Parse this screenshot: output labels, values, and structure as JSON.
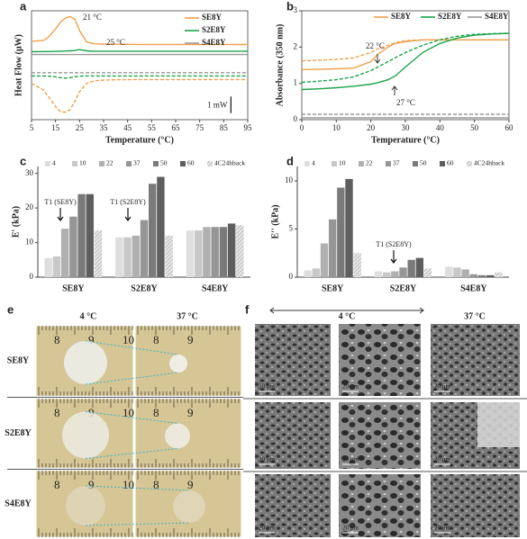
{
  "chart_data": [
    {
      "type": "line",
      "label": "a",
      "xlabel": "Temperature (°C)",
      "ylabel": "Heat Flow (μW)",
      "x": [
        5,
        10,
        12,
        15,
        17,
        19,
        21,
        23,
        25,
        28,
        31,
        35,
        40,
        50,
        60,
        70,
        80,
        90,
        95
      ],
      "xlim": [
        5,
        95
      ],
      "xticks": [
        5,
        15,
        25,
        35,
        45,
        55,
        65,
        75,
        85,
        95
      ],
      "ylim": [
        -3.2,
        3.4
      ],
      "legend": "upper right",
      "series": [
        {
          "name": "SE8Y",
          "color": "#f0a04b",
          "values": [
            1.55,
            1.6,
            1.8,
            2.3,
            2.7,
            2.95,
            3.05,
            2.9,
            2.2,
            1.5,
            1.4,
            1.38,
            1.37,
            1.36,
            1.36,
            1.36,
            1.36,
            1.36,
            1.36
          ],
          "dashed_values": [
            -1.0,
            -1.4,
            -1.8,
            -2.4,
            -2.7,
            -2.75,
            -2.6,
            -2.1,
            -1.5,
            -1.0,
            -0.85,
            -0.8,
            -0.78,
            -0.77,
            -0.77,
            -0.77,
            -0.77,
            -0.77,
            -0.77
          ]
        },
        {
          "name": "S2E8Y",
          "color": "#1aa34a",
          "values": [
            0.92,
            0.93,
            0.93,
            0.94,
            0.95,
            0.96,
            0.97,
            0.99,
            1.05,
            0.97,
            0.95,
            0.95,
            0.95,
            0.95,
            0.95,
            0.95,
            0.95,
            0.95,
            0.95
          ],
          "dashed_values": [
            -0.55,
            -0.55,
            -0.56,
            -0.6,
            -0.65,
            -0.68,
            -0.66,
            -0.6,
            -0.56,
            -0.55,
            -0.55,
            -0.55,
            -0.55,
            -0.55,
            -0.55,
            -0.55,
            -0.55,
            -0.55,
            -0.55
          ]
        },
        {
          "name": "S4E8Y",
          "color": "#9a9a9a",
          "values": [
            0.75,
            0.75,
            0.75,
            0.75,
            0.75,
            0.75,
            0.75,
            0.75,
            0.75,
            0.75,
            0.75,
            0.75,
            0.75,
            0.75,
            0.75,
            0.75,
            0.75,
            0.75,
            0.75
          ],
          "dashed_values": [
            -0.35,
            -0.35,
            -0.35,
            -0.35,
            -0.35,
            -0.35,
            -0.35,
            -0.35,
            -0.35,
            -0.35,
            -0.35,
            -0.35,
            -0.35,
            -0.35,
            -0.35,
            -0.35,
            -0.35,
            -0.35,
            -0.35
          ]
        }
      ],
      "annotations": [
        {
          "text": "21 °C",
          "color": "#f0a04b"
        },
        {
          "text": "25 °C",
          "color": "#1aa34a"
        }
      ],
      "scale_bar": {
        "value": 1,
        "label": "1 mW"
      }
    },
    {
      "type": "line",
      "label": "b",
      "xlabel": "Temperature (°C)",
      "ylabel": "Absorbance (350 nm)",
      "x": [
        0,
        5,
        10,
        15,
        20,
        22,
        25,
        27,
        30,
        35,
        40,
        45,
        50,
        55,
        60
      ],
      "xlim": [
        0,
        60
      ],
      "xticks": [
        0,
        10,
        20,
        30,
        40,
        50,
        60
      ],
      "ylim": [
        0,
        3
      ],
      "yticks": [
        0,
        1,
        2,
        3
      ],
      "legend": "top",
      "series": [
        {
          "name": "SE8Y",
          "color": "#f0a04b",
          "values": [
            1.38,
            1.39,
            1.4,
            1.42,
            1.6,
            1.8,
            2.0,
            2.1,
            2.15,
            2.2,
            2.2,
            2.2,
            2.2,
            2.2,
            2.2
          ],
          "dashed_values": [
            1.62,
            1.64,
            1.66,
            1.7,
            1.85,
            1.95,
            2.05,
            2.12,
            2.18,
            2.2,
            2.2,
            2.2,
            2.2,
            2.2,
            2.2
          ]
        },
        {
          "name": "S2E8Y",
          "color": "#1aa34a",
          "values": [
            0.83,
            0.85,
            0.88,
            0.92,
            0.98,
            1.02,
            1.1,
            1.2,
            1.45,
            1.85,
            2.1,
            2.25,
            2.33,
            2.36,
            2.38
          ],
          "dashed_values": [
            1.03,
            1.06,
            1.1,
            1.18,
            1.35,
            1.45,
            1.6,
            1.7,
            1.85,
            2.05,
            2.2,
            2.3,
            2.35,
            2.37,
            2.38
          ]
        },
        {
          "name": "S4E8Y",
          "color": "#9a9a9a",
          "values": [
            0.05,
            0.05,
            0.05,
            0.05,
            0.05,
            0.05,
            0.05,
            0.05,
            0.05,
            0.05,
            0.05,
            0.05,
            0.05,
            0.05,
            0.05
          ],
          "dashed_values": [
            0.15,
            0.15,
            0.15,
            0.15,
            0.15,
            0.15,
            0.15,
            0.15,
            0.15,
            0.15,
            0.15,
            0.15,
            0.15,
            0.15,
            0.15
          ]
        }
      ],
      "annotations": [
        {
          "text": "22 °C",
          "color": "#f0a04b"
        },
        {
          "text": "27 °C",
          "color": "#1aa34a"
        }
      ]
    },
    {
      "type": "bar",
      "label": "c",
      "ylabel": "E' (kPa)",
      "categories": [
        "SE8Y",
        "S2E8Y",
        "S4E8Y"
      ],
      "ylim": [
        0,
        32
      ],
      "yticks": [
        0,
        10,
        20,
        30
      ],
      "legend": "top",
      "series": [
        {
          "name": "4",
          "color": "#dedede",
          "values": [
            5.5,
            11.5,
            13.5
          ]
        },
        {
          "name": "10",
          "color": "#c8c8c8",
          "values": [
            6,
            11.5,
            13.5
          ]
        },
        {
          "name": "22",
          "color": "#b0b0b0",
          "values": [
            14,
            12,
            14.5
          ]
        },
        {
          "name": "37",
          "color": "#969696",
          "values": [
            17.5,
            16.5,
            14.5
          ]
        },
        {
          "name": "50",
          "color": "#7a7a7a",
          "values": [
            24,
            27,
            14.5
          ]
        },
        {
          "name": "60",
          "color": "#5e5e5e",
          "values": [
            24,
            29,
            15.5
          ]
        },
        {
          "name": "4C24hback",
          "color": "#d0d0d0",
          "hatched": true,
          "values": [
            13.5,
            12,
            15
          ]
        }
      ],
      "annotations": [
        {
          "text": "T1 (SE8Y)",
          "color": "#111111"
        },
        {
          "text": "T1 (S2E8Y)",
          "color": "#111111"
        }
      ]
    },
    {
      "type": "bar",
      "label": "d",
      "ylabel": "E'' (kPa)",
      "categories": [
        "SE8Y",
        "S2E8Y",
        "S4E8Y"
      ],
      "ylim": [
        0,
        11.5
      ],
      "yticks": [
        0,
        5,
        10
      ],
      "legend": "top",
      "series": [
        {
          "name": "4",
          "color": "#dedede",
          "values": [
            0.7,
            0.6,
            1.1
          ]
        },
        {
          "name": "10",
          "color": "#c8c8c8",
          "values": [
            0.9,
            0.5,
            1.0
          ]
        },
        {
          "name": "22",
          "color": "#b0b0b0",
          "values": [
            3.5,
            0.6,
            0.8
          ]
        },
        {
          "name": "37",
          "color": "#969696",
          "values": [
            6,
            1.0,
            0.3
          ]
        },
        {
          "name": "50",
          "color": "#7a7a7a",
          "values": [
            9.3,
            1.8,
            0.2
          ]
        },
        {
          "name": "60",
          "color": "#5e5e5e",
          "values": [
            10.2,
            2.0,
            0.2
          ]
        },
        {
          "name": "4C24hback",
          "color": "#d0d0d0",
          "hatched": true,
          "values": [
            2.5,
            0.9,
            0.5
          ]
        }
      ],
      "annotations": [
        {
          "text": "T1 (S2E8Y)",
          "color": "#111111"
        }
      ]
    }
  ],
  "photos": {
    "label": "e",
    "columns": [
      "4 °C",
      "37 °C"
    ],
    "rows": [
      "SE8Y",
      "S2E8Y",
      "S4E8Y"
    ],
    "ruler_left": [
      "8",
      "9",
      "10"
    ],
    "ruler_right": [
      "8",
      "9"
    ]
  },
  "sem": {
    "label": "f",
    "columns": [
      "4 °C",
      "37 °C"
    ],
    "scale_bar": "20 μm"
  }
}
